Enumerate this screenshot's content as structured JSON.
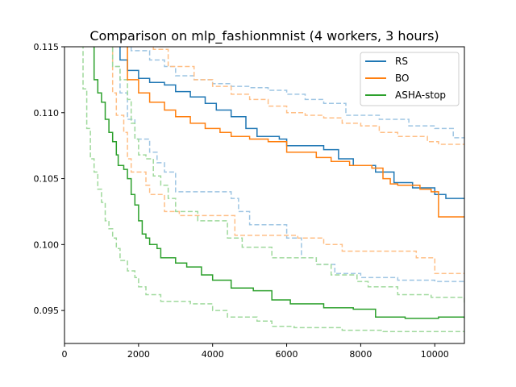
{
  "chart_data": {
    "type": "line",
    "title": "Comparison on mlp_fashionmnist (4 workers, 3 hours)",
    "xlabel": "",
    "ylabel": "",
    "xlim": [
      0,
      10800
    ],
    "ylim": [
      0.0925,
      0.115
    ],
    "x_ticks": [
      0,
      2000,
      4000,
      6000,
      8000,
      10000
    ],
    "x_tick_labels": [
      "0",
      "2000",
      "4000",
      "6000",
      "8000",
      "10000"
    ],
    "y_ticks": [
      0.095,
      0.1,
      0.105,
      0.11,
      0.115
    ],
    "y_tick_labels": [
      "0.095",
      "0.100",
      "0.105",
      "0.110",
      "0.115"
    ],
    "grid": false,
    "legend_position": "top-right",
    "step_lines": true,
    "series": [
      {
        "name": "RS",
        "color": "#1f77b4",
        "band_color": "#9ec5e3",
        "mean": [
          [
            1400,
            0.1155
          ],
          [
            1500,
            0.114
          ],
          [
            1700,
            0.1132
          ],
          [
            2000,
            0.1126
          ],
          [
            2300,
            0.1123
          ],
          [
            2700,
            0.1121
          ],
          [
            3000,
            0.1116
          ],
          [
            3400,
            0.1112
          ],
          [
            3800,
            0.1107
          ],
          [
            4100,
            0.1102
          ],
          [
            4500,
            0.1097
          ],
          [
            4900,
            0.1088
          ],
          [
            5200,
            0.1082
          ],
          [
            5800,
            0.108
          ],
          [
            6000,
            0.1075
          ],
          [
            7000,
            0.1072
          ],
          [
            7400,
            0.1065
          ],
          [
            7800,
            0.106
          ],
          [
            8400,
            0.1055
          ],
          [
            8900,
            0.1047
          ],
          [
            9400,
            0.1043
          ],
          [
            10000,
            0.1038
          ],
          [
            10300,
            0.1035
          ],
          [
            10800,
            0.1035
          ]
        ],
        "lower": [
          [
            1100,
            0.1155
          ],
          [
            1300,
            0.1135
          ],
          [
            1500,
            0.1115
          ],
          [
            1700,
            0.1095
          ],
          [
            1900,
            0.108
          ],
          [
            2300,
            0.107
          ],
          [
            2500,
            0.1062
          ],
          [
            2700,
            0.1055
          ],
          [
            3000,
            0.104
          ],
          [
            3300,
            0.104
          ],
          [
            4300,
            0.104
          ],
          [
            4500,
            0.1035
          ],
          [
            4700,
            0.1025
          ],
          [
            5000,
            0.1015
          ],
          [
            6000,
            0.1005
          ],
          [
            6400,
            0.099
          ],
          [
            6800,
            0.0985
          ],
          [
            7300,
            0.0978
          ],
          [
            8000,
            0.0975
          ],
          [
            9000,
            0.0973
          ],
          [
            10000,
            0.0972
          ],
          [
            10800,
            0.0972
          ]
        ],
        "upper": [
          [
            1600,
            0.1155
          ],
          [
            1800,
            0.1147
          ],
          [
            2300,
            0.114
          ],
          [
            2700,
            0.1135
          ],
          [
            3000,
            0.1128
          ],
          [
            3500,
            0.1125
          ],
          [
            4000,
            0.1122
          ],
          [
            4500,
            0.112
          ],
          [
            5000,
            0.1119
          ],
          [
            5500,
            0.1117
          ],
          [
            6000,
            0.1114
          ],
          [
            6500,
            0.111
          ],
          [
            7000,
            0.1107
          ],
          [
            7600,
            0.1098
          ],
          [
            8500,
            0.1095
          ],
          [
            9300,
            0.109
          ],
          [
            10000,
            0.1088
          ],
          [
            10500,
            0.1081
          ],
          [
            10800,
            0.1081
          ]
        ]
      },
      {
        "name": "BO",
        "color": "#ff7f0e",
        "band_color": "#ffbf86",
        "mean": [
          [
            1500,
            0.1155
          ],
          [
            1700,
            0.1125
          ],
          [
            2000,
            0.1115
          ],
          [
            2300,
            0.1108
          ],
          [
            2700,
            0.1102
          ],
          [
            3000,
            0.1097
          ],
          [
            3400,
            0.1092
          ],
          [
            3800,
            0.1088
          ],
          [
            4200,
            0.1085
          ],
          [
            4500,
            0.1082
          ],
          [
            5000,
            0.108
          ],
          [
            5500,
            0.1078
          ],
          [
            6000,
            0.107
          ],
          [
            6800,
            0.1066
          ],
          [
            7200,
            0.1063
          ],
          [
            7700,
            0.106
          ],
          [
            8300,
            0.1058
          ],
          [
            8600,
            0.105
          ],
          [
            8800,
            0.1046
          ],
          [
            9000,
            0.1045
          ],
          [
            9600,
            0.1042
          ],
          [
            9900,
            0.104
          ],
          [
            10100,
            0.1021
          ],
          [
            10800,
            0.1021
          ]
        ],
        "lower": [
          [
            1200,
            0.1155
          ],
          [
            1300,
            0.1115
          ],
          [
            1400,
            0.1098
          ],
          [
            1600,
            0.1085
          ],
          [
            1700,
            0.1065
          ],
          [
            1800,
            0.1055
          ],
          [
            2200,
            0.1045
          ],
          [
            2300,
            0.1038
          ],
          [
            2700,
            0.1025
          ],
          [
            3100,
            0.1022
          ],
          [
            4300,
            0.1022
          ],
          [
            4600,
            0.1007
          ],
          [
            6300,
            0.1005
          ],
          [
            7000,
            0.1
          ],
          [
            7500,
            0.0995
          ],
          [
            9500,
            0.099
          ],
          [
            10000,
            0.0978
          ],
          [
            10800,
            0.0978
          ]
        ],
        "upper": [
          [
            2200,
            0.1155
          ],
          [
            2400,
            0.1148
          ],
          [
            2800,
            0.1135
          ],
          [
            3500,
            0.1125
          ],
          [
            4000,
            0.112
          ],
          [
            4500,
            0.1114
          ],
          [
            5000,
            0.111
          ],
          [
            5500,
            0.1105
          ],
          [
            6000,
            0.11
          ],
          [
            6500,
            0.1098
          ],
          [
            7000,
            0.1096
          ],
          [
            7500,
            0.1092
          ],
          [
            8000,
            0.109
          ],
          [
            8500,
            0.1085
          ],
          [
            9000,
            0.1082
          ],
          [
            9800,
            0.1078
          ],
          [
            10100,
            0.1076
          ],
          [
            10800,
            0.1076
          ]
        ]
      },
      {
        "name": "ASHA-stop",
        "color": "#2ca02c",
        "band_color": "#9fd99c",
        "mean": [
          [
            700,
            0.1155
          ],
          [
            800,
            0.1125
          ],
          [
            900,
            0.1115
          ],
          [
            1000,
            0.1108
          ],
          [
            1100,
            0.1095
          ],
          [
            1200,
            0.1085
          ],
          [
            1300,
            0.1078
          ],
          [
            1400,
            0.1068
          ],
          [
            1450,
            0.106
          ],
          [
            1600,
            0.1057
          ],
          [
            1700,
            0.105
          ],
          [
            1800,
            0.1038
          ],
          [
            1900,
            0.103
          ],
          [
            2000,
            0.1018
          ],
          [
            2100,
            0.1008
          ],
          [
            2200,
            0.1005
          ],
          [
            2300,
            0.1
          ],
          [
            2500,
            0.0997
          ],
          [
            2600,
            0.099
          ],
          [
            3000,
            0.0986
          ],
          [
            3300,
            0.0983
          ],
          [
            3700,
            0.0977
          ],
          [
            4000,
            0.0973
          ],
          [
            4500,
            0.0967
          ],
          [
            5100,
            0.0965
          ],
          [
            5600,
            0.0958
          ],
          [
            6100,
            0.0955
          ],
          [
            7000,
            0.0952
          ],
          [
            7800,
            0.0951
          ],
          [
            8400,
            0.0945
          ],
          [
            9200,
            0.0944
          ],
          [
            10100,
            0.0945
          ],
          [
            10800,
            0.0944
          ]
        ],
        "lower": [
          [
            400,
            0.1155
          ],
          [
            500,
            0.1118
          ],
          [
            600,
            0.1088
          ],
          [
            700,
            0.1065
          ],
          [
            800,
            0.1055
          ],
          [
            900,
            0.1042
          ],
          [
            1000,
            0.1032
          ],
          [
            1100,
            0.1018
          ],
          [
            1200,
            0.1012
          ],
          [
            1300,
            0.1005
          ],
          [
            1400,
            0.0997
          ],
          [
            1500,
            0.0988
          ],
          [
            1700,
            0.098
          ],
          [
            1900,
            0.0975
          ],
          [
            2000,
            0.0968
          ],
          [
            2200,
            0.0962
          ],
          [
            2600,
            0.0957
          ],
          [
            3400,
            0.0955
          ],
          [
            4000,
            0.095
          ],
          [
            4400,
            0.0945
          ],
          [
            5200,
            0.0942
          ],
          [
            5600,
            0.0938
          ],
          [
            6200,
            0.0937
          ],
          [
            7500,
            0.0935
          ],
          [
            8600,
            0.0934
          ],
          [
            10800,
            0.0934
          ]
        ],
        "upper": [
          [
            1100,
            0.1155
          ],
          [
            1300,
            0.1135
          ],
          [
            1500,
            0.1125
          ],
          [
            1700,
            0.111
          ],
          [
            1800,
            0.1092
          ],
          [
            1900,
            0.108
          ],
          [
            2000,
            0.1068
          ],
          [
            2200,
            0.1065
          ],
          [
            2400,
            0.1052
          ],
          [
            2600,
            0.1045
          ],
          [
            2800,
            0.1035
          ],
          [
            3000,
            0.1025
          ],
          [
            3600,
            0.1018
          ],
          [
            4400,
            0.1005
          ],
          [
            4800,
            0.0998
          ],
          [
            5600,
            0.099
          ],
          [
            6800,
            0.0985
          ],
          [
            7200,
            0.0977
          ],
          [
            7900,
            0.0972
          ],
          [
            8200,
            0.0968
          ],
          [
            9000,
            0.0962
          ],
          [
            9900,
            0.096
          ],
          [
            10800,
            0.0956
          ]
        ]
      }
    ]
  }
}
